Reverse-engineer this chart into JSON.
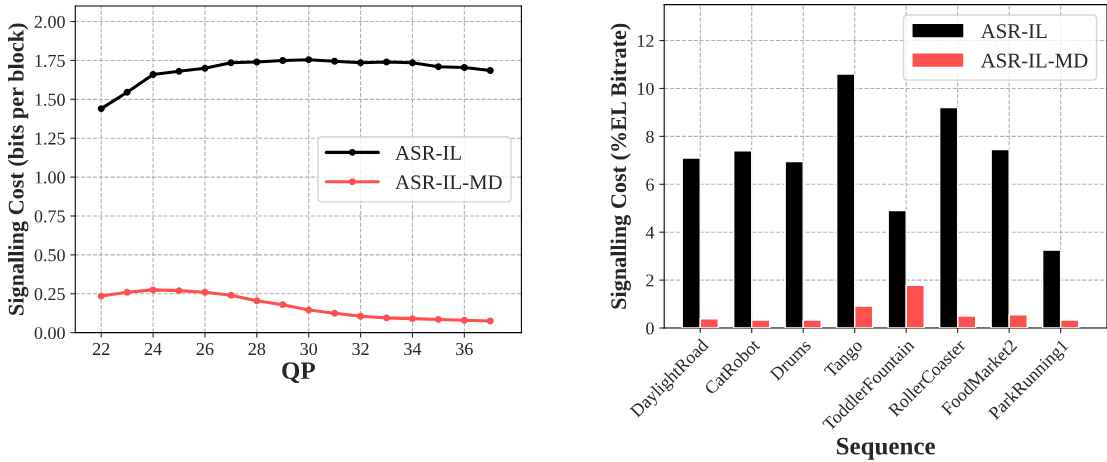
{
  "chart_data": [
    {
      "type": "line",
      "xlabel": "QP",
      "ylabel": "Signalling Cost (bits per block)",
      "x": [
        22,
        23,
        24,
        25,
        26,
        27,
        28,
        29,
        30,
        31,
        32,
        33,
        34,
        35,
        36,
        37
      ],
      "series": [
        {
          "name": "ASR-IL",
          "color": "#000000",
          "values": [
            1.44,
            1.545,
            1.66,
            1.68,
            1.7,
            1.735,
            1.74,
            1.75,
            1.755,
            1.745,
            1.735,
            1.74,
            1.735,
            1.71,
            1.705,
            1.685
          ]
        },
        {
          "name": "ASR-IL-MD",
          "color": "#ff5050",
          "values": [
            0.235,
            0.26,
            0.275,
            0.27,
            0.26,
            0.24,
            0.205,
            0.18,
            0.145,
            0.125,
            0.105,
            0.095,
            0.09,
            0.085,
            0.08,
            0.075
          ]
        }
      ],
      "xlim": [
        21,
        38.2
      ],
      "xticks": [
        22,
        24,
        26,
        28,
        30,
        32,
        34,
        36
      ],
      "ylim": [
        0,
        2.1
      ],
      "yticks": [
        {
          "value": 0,
          "label": "0.00"
        },
        {
          "value": 0.25,
          "label": "0.25"
        },
        {
          "value": 0.5,
          "label": "0.50"
        },
        {
          "value": 0.75,
          "label": "0.75"
        },
        {
          "value": 1.0,
          "label": "1.00"
        },
        {
          "value": 1.25,
          "label": "1.25"
        },
        {
          "value": 1.5,
          "label": "1.50"
        },
        {
          "value": 1.75,
          "label": "1.75"
        },
        {
          "value": 2.0,
          "label": "2.00"
        }
      ],
      "grid": true,
      "legend": "center right",
      "marker": "circle",
      "line_style": "solid"
    },
    {
      "type": "bar",
      "xlabel": "Sequence",
      "ylabel": "Signalling Cost (%EL Bitrate)",
      "categories": [
        "DaylightRoad",
        "CatRobot",
        "Drums",
        "Tango",
        "ToddlerFountain",
        "RollerCoaster",
        "FoodMarket2",
        "ParkRunning1"
      ],
      "series": [
        {
          "name": "ASR-IL",
          "color": "#000000",
          "values": [
            7.1,
            7.4,
            6.95,
            10.6,
            4.9,
            9.2,
            7.45,
            3.25
          ]
        },
        {
          "name": "ASR-IL-MD",
          "color": "#ff5050",
          "values": [
            0.38,
            0.33,
            0.33,
            0.92,
            1.78,
            0.5,
            0.55,
            0.33
          ]
        }
      ],
      "ylim": [
        0,
        13.5
      ],
      "yticks": [
        0,
        2,
        4,
        6,
        8,
        10,
        12
      ],
      "grid": true,
      "legend": "top right"
    }
  ]
}
